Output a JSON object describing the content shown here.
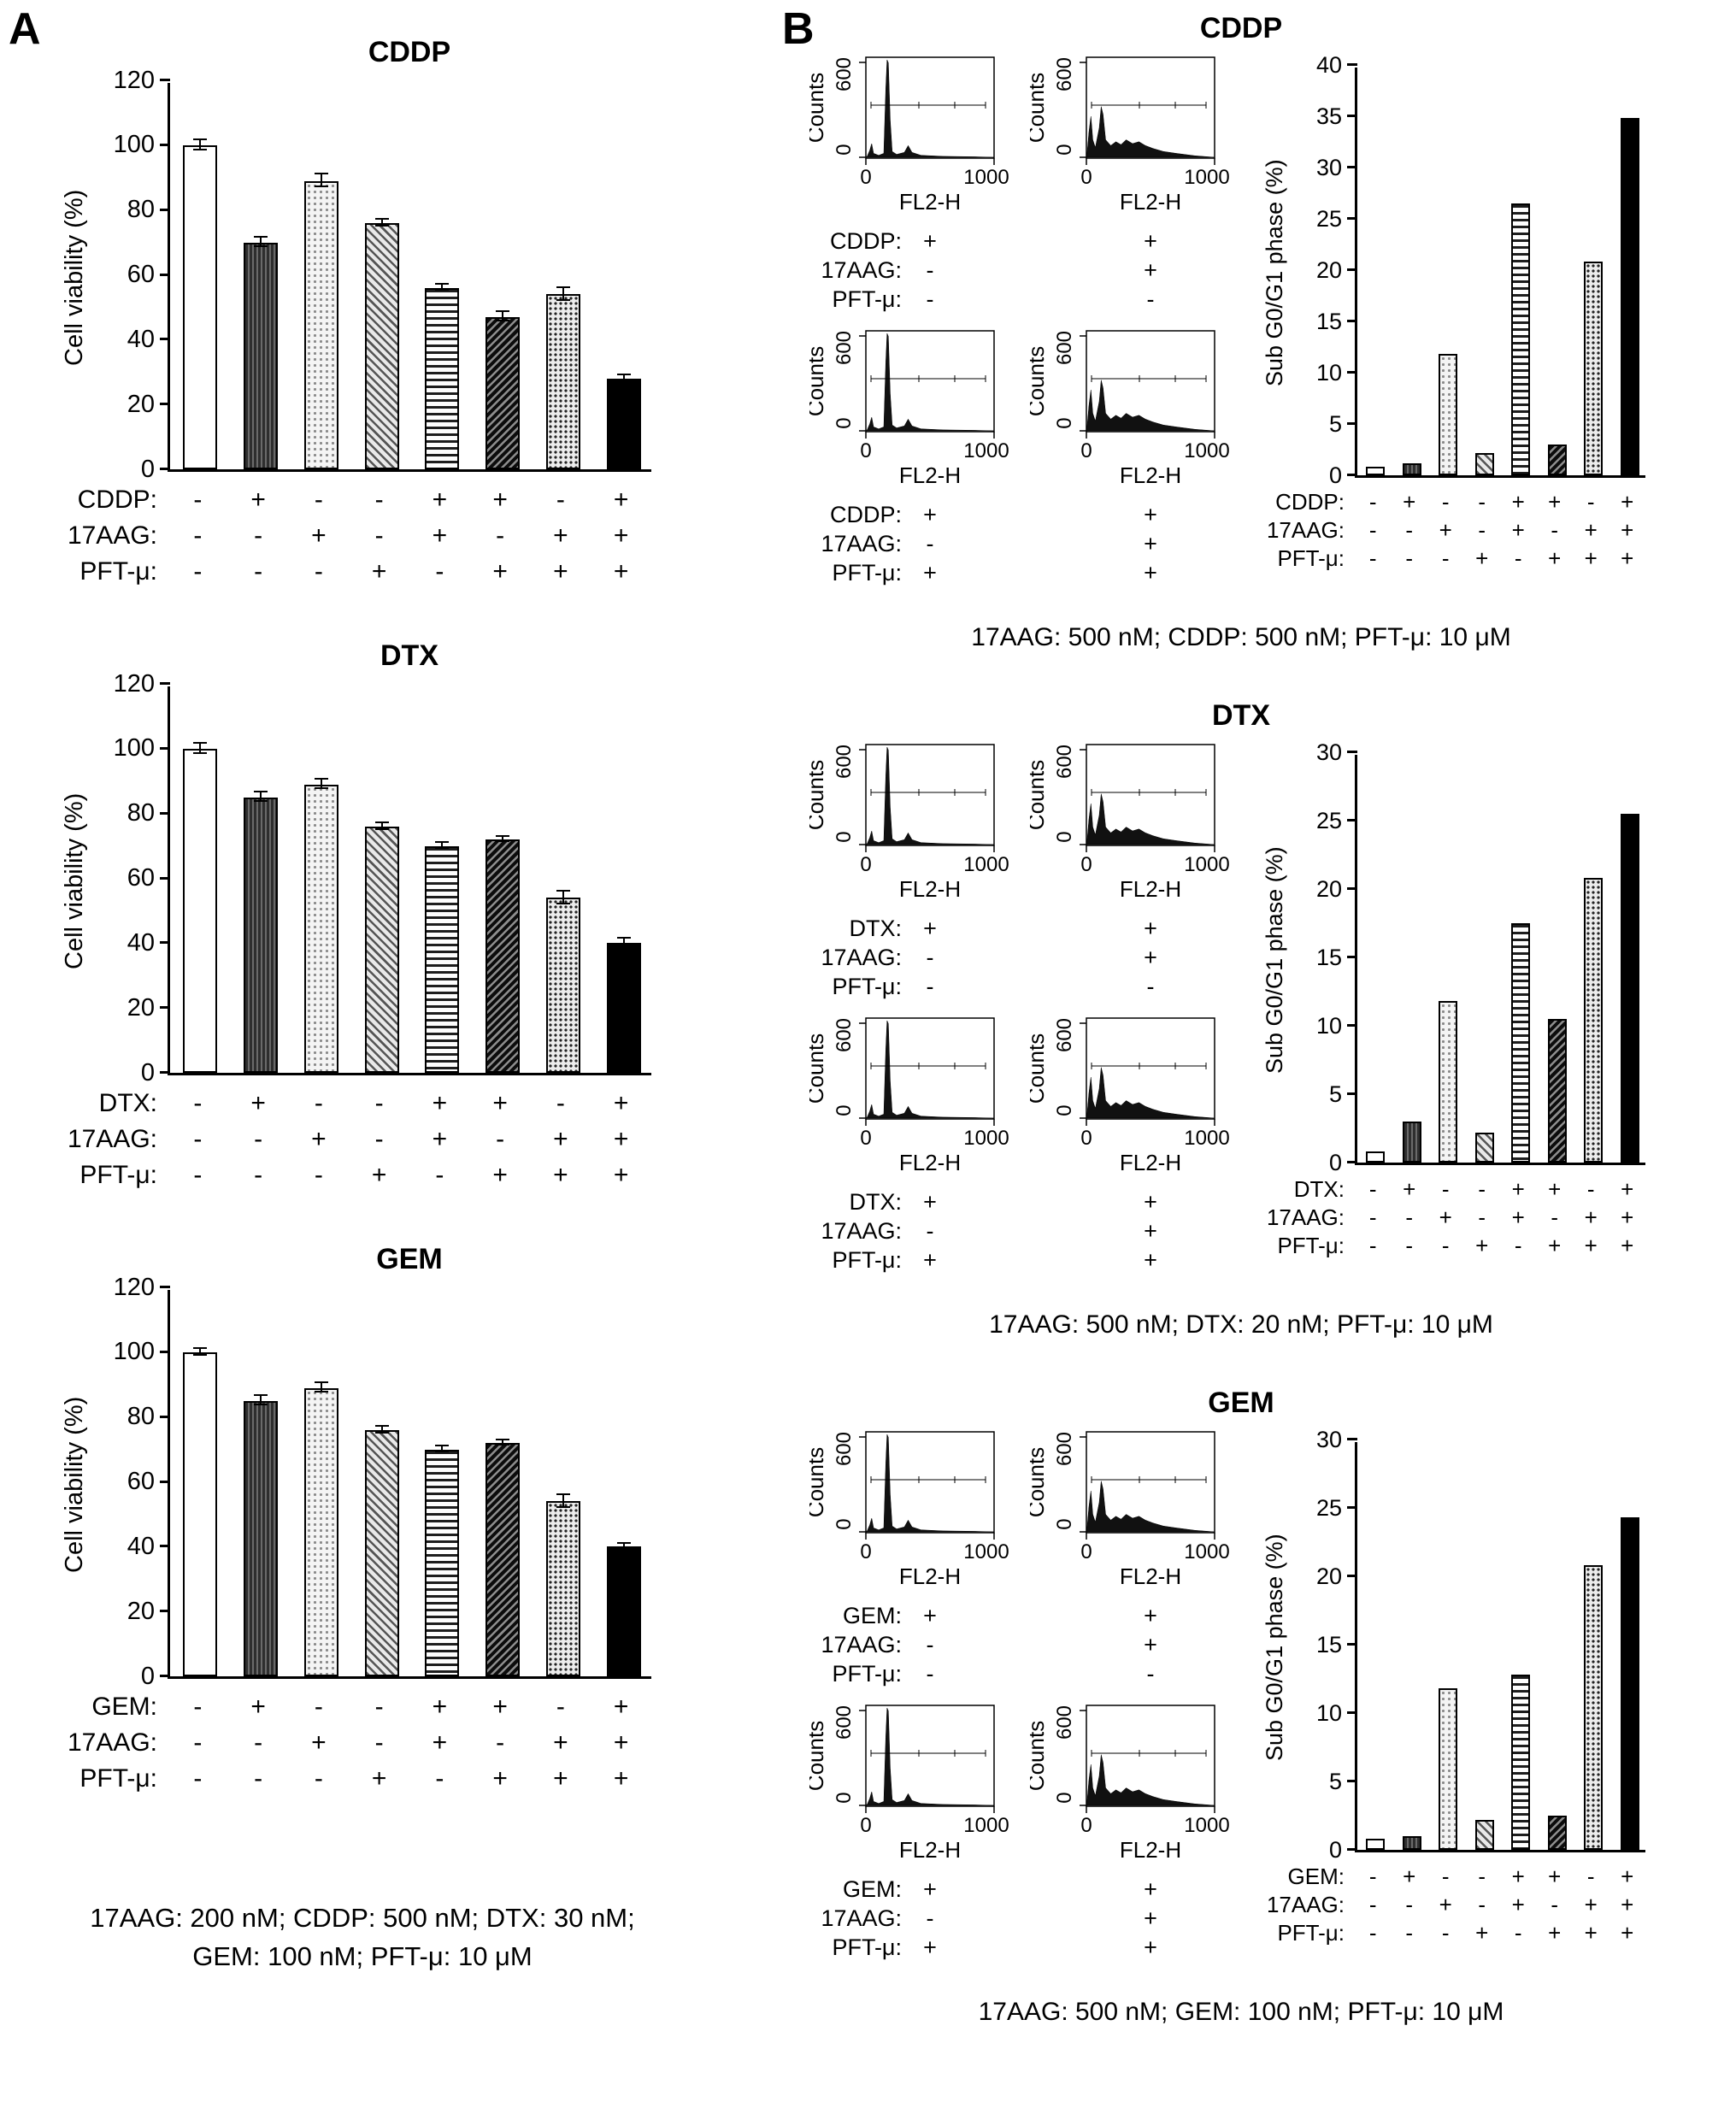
{
  "figure": {
    "panelA_label": "A",
    "panelB_label": "B"
  },
  "chart_data": {
    "panelA": {
      "footnote": [
        "17AAG: 200 nM; CDDP: 500 nM; DTX: 30 nM;",
        "GEM: 100 nM; PFT-μ: 10 μM"
      ],
      "charts": [
        {
          "type": "bar",
          "title": "CDDP",
          "ylabel": "Cell viability (%)",
          "ylim": [
            0,
            120
          ],
          "ytick_step": 20,
          "values": [
            100,
            70,
            89,
            76,
            56,
            47,
            54,
            28
          ],
          "errors": [
            1.5,
            1.5,
            2,
            1,
            1,
            1.5,
            2,
            1
          ],
          "condition_rows": [
            {
              "label": "CDDP:",
              "values": [
                "-",
                "+",
                "-",
                "-",
                "+",
                "+",
                "-",
                "+"
              ]
            },
            {
              "label": "17AAG:",
              "values": [
                "-",
                "-",
                "+",
                "-",
                "+",
                "-",
                "+",
                "+"
              ]
            },
            {
              "label": "PFT-μ:",
              "values": [
                "-",
                "-",
                "-",
                "+",
                "-",
                "+",
                "+",
                "+"
              ]
            }
          ]
        },
        {
          "type": "bar",
          "title": "DTX",
          "ylabel": "Cell viability (%)",
          "ylim": [
            0,
            120
          ],
          "ytick_step": 20,
          "values": [
            100,
            85,
            89,
            76,
            70,
            72,
            54,
            40
          ],
          "errors": [
            1.5,
            1.5,
            1.5,
            1,
            1,
            0.8,
            2,
            1.5
          ],
          "condition_rows": [
            {
              "label": "DTX:",
              "values": [
                "-",
                "+",
                "-",
                "-",
                "+",
                "+",
                "-",
                "+"
              ]
            },
            {
              "label": "17AAG:",
              "values": [
                "-",
                "-",
                "+",
                "-",
                "+",
                "-",
                "+",
                "+"
              ]
            },
            {
              "label": "PFT-μ:",
              "values": [
                "-",
                "-",
                "-",
                "+",
                "-",
                "+",
                "+",
                "+"
              ]
            }
          ]
        },
        {
          "type": "bar",
          "title": "GEM",
          "ylabel": "Cell viability (%)",
          "ylim": [
            0,
            120
          ],
          "ytick_step": 20,
          "values": [
            100,
            85,
            89,
            76,
            70,
            72,
            54,
            40
          ],
          "errors": [
            1,
            1.5,
            1.5,
            1,
            1,
            0.8,
            2,
            1
          ],
          "condition_rows": [
            {
              "label": "GEM:",
              "values": [
                "-",
                "+",
                "-",
                "-",
                "+",
                "+",
                "-",
                "+"
              ]
            },
            {
              "label": "17AAG:",
              "values": [
                "-",
                "-",
                "+",
                "-",
                "+",
                "-",
                "+",
                "+"
              ]
            },
            {
              "label": "PFT-μ:",
              "values": [
                "-",
                "-",
                "-",
                "+",
                "-",
                "+",
                "+",
                "+"
              ]
            }
          ]
        }
      ]
    },
    "panelB": {
      "flow_axis": {
        "ylabel": "Counts",
        "xlabel": "FL2-H",
        "yticks": [
          "0",
          "600"
        ],
        "xticks": [
          "0",
          "1000"
        ]
      },
      "groups": [
        {
          "title": "CDDP",
          "condition_labels": [
            "CDDP:",
            "17AAG:",
            "PFT-μ:"
          ],
          "flow_plots": [
            {
              "type": "histogram",
              "profile": "sharp",
              "conditions": [
                "+",
                "-",
                "-"
              ]
            },
            {
              "type": "histogram",
              "profile": "spread",
              "conditions": [
                "+",
                "+",
                "-"
              ]
            },
            {
              "type": "histogram",
              "profile": "sharp",
              "conditions": [
                "+",
                "-",
                "+"
              ]
            },
            {
              "type": "histogram",
              "profile": "spread",
              "conditions": [
                "+",
                "+",
                "+"
              ]
            }
          ],
          "chart": {
            "type": "bar",
            "ylabel": "Sub G0/G1 phase (%)",
            "ylim": [
              0,
              40
            ],
            "ytick_step": 5,
            "values": [
              0.8,
              1.2,
              11.8,
              2.2,
              26.5,
              3,
              20.8,
              34.8
            ],
            "condition_rows": [
              {
                "label": "CDDP:",
                "values": [
                  "-",
                  "+",
                  "-",
                  "-",
                  "+",
                  "+",
                  "-",
                  "+"
                ]
              },
              {
                "label": "17AAG:",
                "values": [
                  "-",
                  "-",
                  "+",
                  "-",
                  "+",
                  "-",
                  "+",
                  "+"
                ]
              },
              {
                "label": "PFT-μ:",
                "values": [
                  "-",
                  "-",
                  "-",
                  "+",
                  "-",
                  "+",
                  "+",
                  "+"
                ]
              }
            ]
          },
          "footnote": "17AAG: 500 nM; CDDP: 500 nM; PFT-μ: 10 μM"
        },
        {
          "title": "DTX",
          "condition_labels": [
            "DTX:",
            "17AAG:",
            "PFT-μ:"
          ],
          "flow_plots": [
            {
              "type": "histogram",
              "profile": "sharp",
              "conditions": [
                "+",
                "-",
                "-"
              ]
            },
            {
              "type": "histogram",
              "profile": "spread",
              "conditions": [
                "+",
                "+",
                "-"
              ]
            },
            {
              "type": "histogram",
              "profile": "sharp",
              "conditions": [
                "+",
                "-",
                "+"
              ]
            },
            {
              "type": "histogram",
              "profile": "spread",
              "conditions": [
                "+",
                "+",
                "+"
              ]
            }
          ],
          "chart": {
            "type": "bar",
            "ylabel": "Sub G0/G1 phase (%)",
            "ylim": [
              0,
              30
            ],
            "ytick_step": 5,
            "values": [
              0.8,
              3,
              11.8,
              2.2,
              17.5,
              10.5,
              20.8,
              25.5
            ],
            "condition_rows": [
              {
                "label": "DTX:",
                "values": [
                  "-",
                  "+",
                  "-",
                  "-",
                  "+",
                  "+",
                  "-",
                  "+"
                ]
              },
              {
                "label": "17AAG:",
                "values": [
                  "-",
                  "-",
                  "+",
                  "-",
                  "+",
                  "-",
                  "+",
                  "+"
                ]
              },
              {
                "label": "PFT-μ:",
                "values": [
                  "-",
                  "-",
                  "-",
                  "+",
                  "-",
                  "+",
                  "+",
                  "+"
                ]
              }
            ]
          },
          "footnote": "17AAG: 500 nM; DTX: 20 nM; PFT-μ: 10 μM"
        },
        {
          "title": "GEM",
          "condition_labels": [
            "GEM:",
            "17AAG:",
            "PFT-μ:"
          ],
          "flow_plots": [
            {
              "type": "histogram",
              "profile": "sharp",
              "conditions": [
                "+",
                "-",
                "-"
              ]
            },
            {
              "type": "histogram",
              "profile": "spread",
              "conditions": [
                "+",
                "+",
                "-"
              ]
            },
            {
              "type": "histogram",
              "profile": "sharp",
              "conditions": [
                "+",
                "-",
                "+"
              ]
            },
            {
              "type": "histogram",
              "profile": "spread",
              "conditions": [
                "+",
                "+",
                "+"
              ]
            }
          ],
          "chart": {
            "type": "bar",
            "ylabel": "Sub G0/G1 phase (%)",
            "ylim": [
              0,
              30
            ],
            "ytick_step": 5,
            "values": [
              0.8,
              1,
              11.8,
              2.2,
              12.8,
              2.5,
              20.8,
              24.3
            ],
            "condition_rows": [
              {
                "label": "GEM:",
                "values": [
                  "-",
                  "+",
                  "-",
                  "-",
                  "+",
                  "+",
                  "-",
                  "+"
                ]
              },
              {
                "label": "17AAG:",
                "values": [
                  "-",
                  "-",
                  "+",
                  "-",
                  "+",
                  "-",
                  "+",
                  "+"
                ]
              },
              {
                "label": "PFT-μ:",
                "values": [
                  "-",
                  "-",
                  "-",
                  "+",
                  "-",
                  "+",
                  "+",
                  "+"
                ]
              }
            ]
          },
          "footnote": "17AAG: 500 nM; GEM: 100 nM; PFT-μ: 10 μM"
        }
      ]
    }
  }
}
